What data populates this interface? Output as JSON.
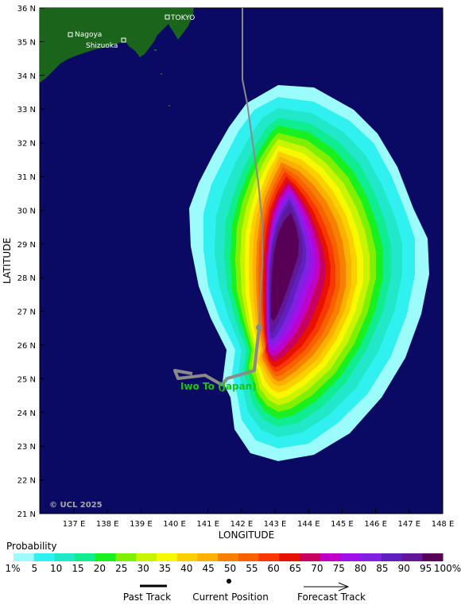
{
  "map": {
    "latitude_label": "LATITUDE",
    "longitude_label": "LONGITUDE",
    "lat_ticks": [
      "21 N",
      "22 N",
      "23 N",
      "24 N",
      "25 N",
      "26 N",
      "27 N",
      "28 N",
      "29 N",
      "30 N",
      "31 N",
      "32 N",
      "33 N",
      "34 N",
      "35 N",
      "36 N"
    ],
    "lon_ticks": [
      "137 E",
      "138 E",
      "139 E",
      "140 E",
      "141 E",
      "142 E",
      "143 E",
      "144 E",
      "145 E",
      "146 E",
      "147 E",
      "148 E"
    ],
    "copyright": "© UCL 2025",
    "cities": [
      {
        "name": "TOKYO"
      },
      {
        "name": "Nagoya"
      },
      {
        "name": "Shizuoka"
      }
    ],
    "island_label": "Iwo To (Japan)",
    "colors": {
      "ocean": "#0a0a64",
      "land": "#1b641b"
    }
  },
  "legend": {
    "title": "Probability",
    "labels": [
      "1%",
      "5",
      "10",
      "15",
      "20",
      "25",
      "30",
      "35",
      "40",
      "45",
      "50",
      "55",
      "60",
      "65",
      "70",
      "75",
      "80",
      "85",
      "90",
      "95",
      "100%"
    ],
    "colors": [
      "#9cfcfc",
      "#30f0f0",
      "#20e8c8",
      "#10ec90",
      "#18f020",
      "#80f000",
      "#c8f400",
      "#f8f800",
      "#fcd000",
      "#fcb000",
      "#f88000",
      "#f86000",
      "#f83800",
      "#e81000",
      "#c80060",
      "#c000c8",
      "#a010e8",
      "#8020e0",
      "#6020c0",
      "#601898",
      "#580058"
    ],
    "past_track_label": "Past Track",
    "current_position_label": "Current Position",
    "forecast_track_label": "Forecast Track"
  }
}
